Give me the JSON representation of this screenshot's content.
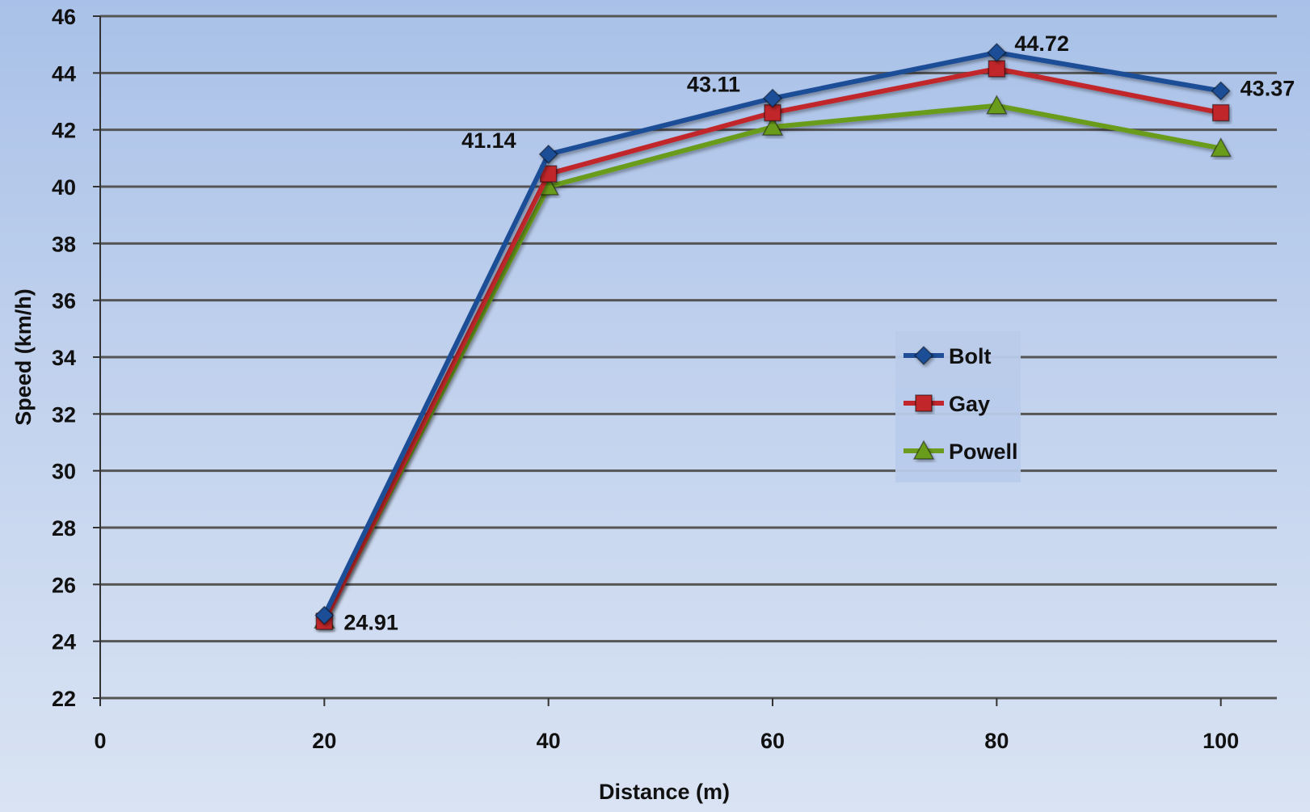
{
  "chart_data": {
    "type": "line",
    "xlabel": "Distance (m)",
    "ylabel": "Speed (km/h)",
    "xlim": [
      0,
      105
    ],
    "ylim": [
      22,
      46
    ],
    "x_ticks": [
      0,
      20,
      40,
      60,
      80,
      100
    ],
    "y_ticks": [
      22,
      24,
      26,
      28,
      30,
      32,
      34,
      36,
      38,
      40,
      42,
      44,
      46
    ],
    "grid": true,
    "legend_position": "center-right",
    "x": [
      20,
      40,
      60,
      80,
      100
    ],
    "series": [
      {
        "name": "Bolt",
        "values": [
          24.91,
          41.14,
          43.11,
          44.72,
          43.37
        ],
        "color": "#1f4e97",
        "marker": "diamond"
      },
      {
        "name": "Gay",
        "values": [
          24.7,
          40.45,
          42.6,
          44.15,
          42.6
        ],
        "color": "#c0262c",
        "marker": "square"
      },
      {
        "name": "Powell",
        "values": [
          24.75,
          40.0,
          42.1,
          42.85,
          41.35
        ],
        "color": "#6b9c1f",
        "marker": "triangle"
      }
    ],
    "data_labels": [
      {
        "series": "Bolt",
        "x": 20,
        "text": "24.91",
        "side": "right"
      },
      {
        "series": "Bolt",
        "x": 40,
        "text": "41.14",
        "side": "left"
      },
      {
        "series": "Bolt",
        "x": 60,
        "text": "43.11",
        "side": "left"
      },
      {
        "series": "Bolt",
        "x": 80,
        "text": "44.72",
        "side": "right"
      },
      {
        "series": "Bolt",
        "x": 100,
        "text": "43.37",
        "side": "right"
      }
    ]
  }
}
